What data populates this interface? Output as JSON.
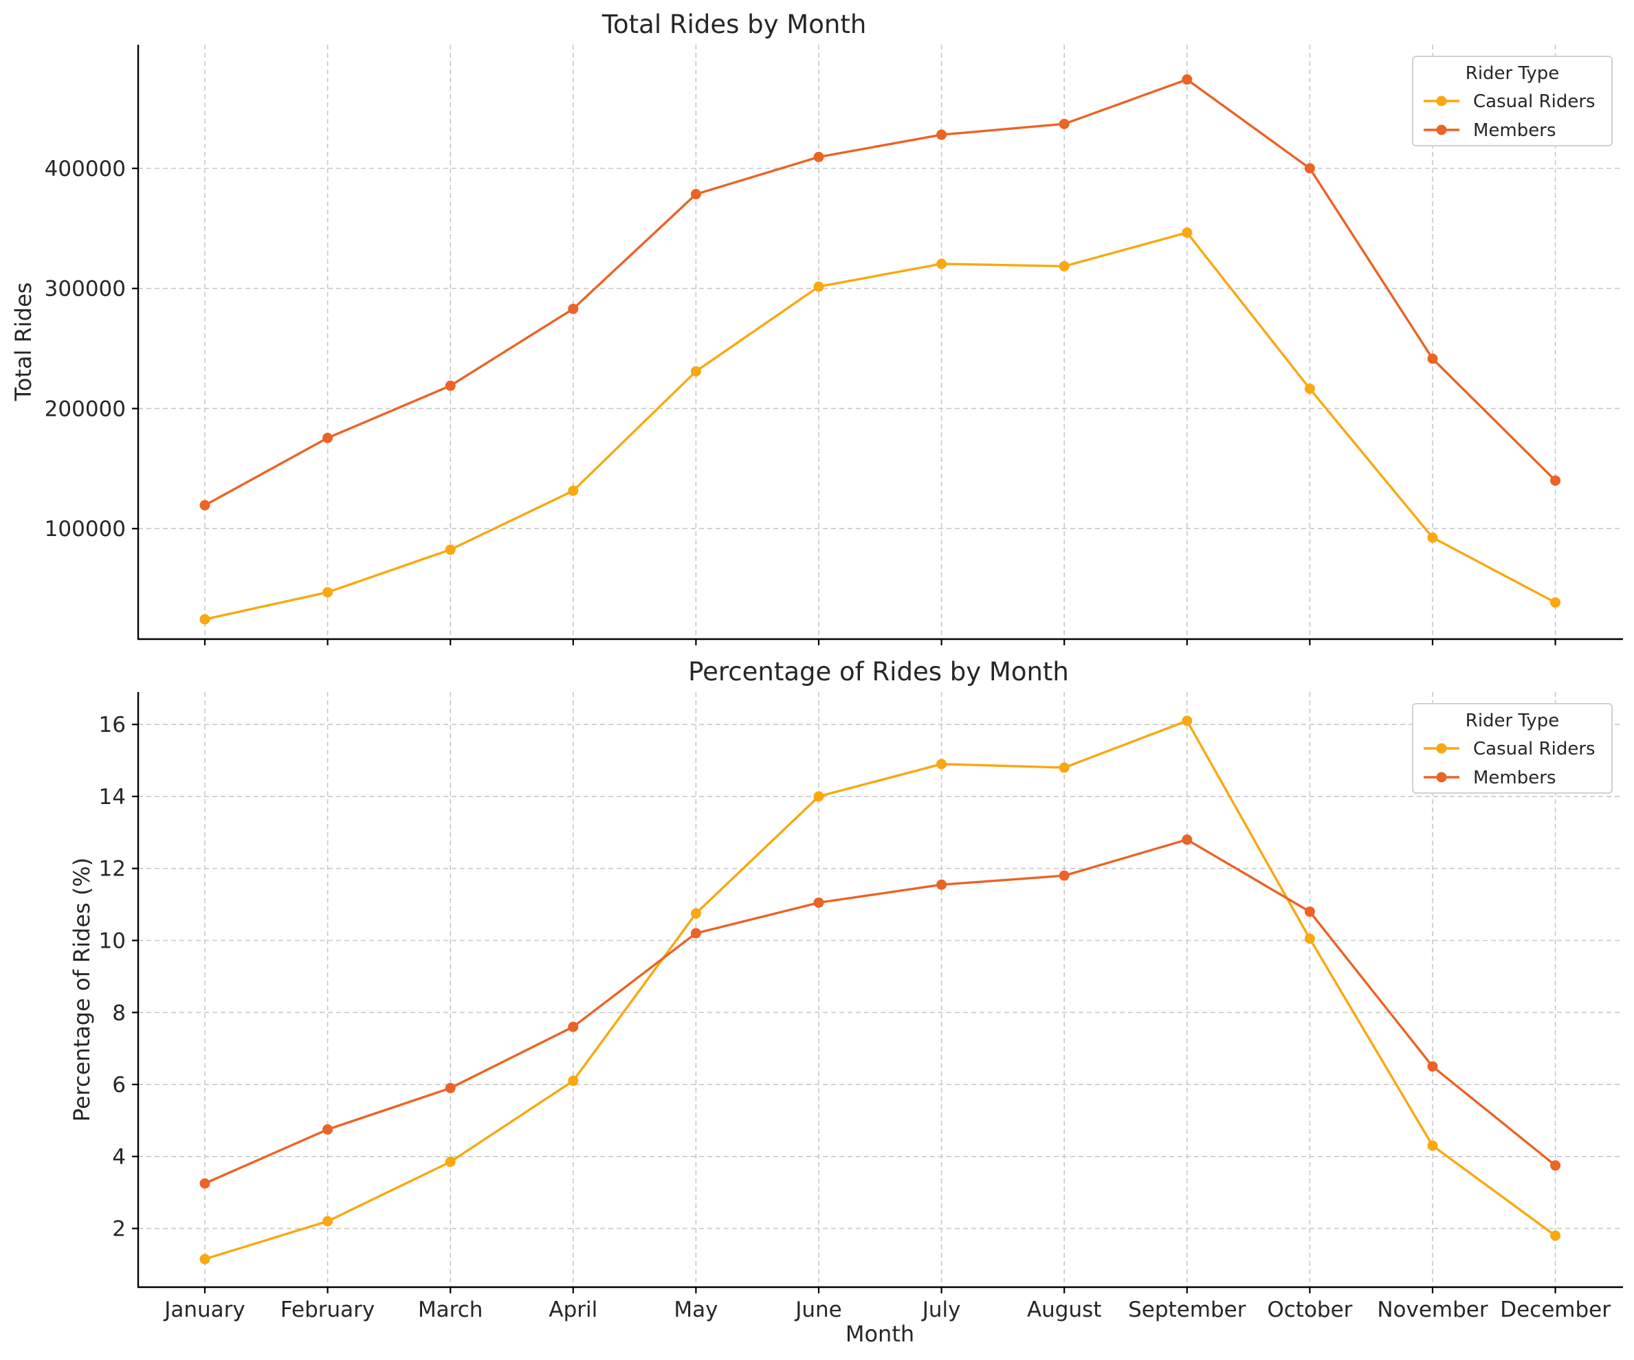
{
  "colors": {
    "casual": "#f9a80f",
    "members": "#eb6325"
  },
  "chart_data": [
    {
      "type": "line",
      "title": "Total Rides by Month",
      "xlabel": "",
      "ylabel": "Total Rides",
      "categories": [
        "January",
        "February",
        "March",
        "April",
        "May",
        "June",
        "July",
        "August",
        "September",
        "October",
        "November",
        "December"
      ],
      "ylim": [
        8000,
        503000
      ],
      "yticks": [
        "100000",
        "200000",
        "300000",
        "400000"
      ],
      "grid": true,
      "legend": {
        "title": "Rider Type",
        "placement": "top-right"
      },
      "series": [
        {
          "name": "Casual Riders",
          "color_key": "casual",
          "values": [
            24500,
            47000,
            82500,
            131500,
            231000,
            301500,
            320500,
            318500,
            346500,
            216500,
            92500,
            38500
          ]
        },
        {
          "name": "Members",
          "color_key": "members",
          "values": [
            119500,
            175500,
            219000,
            283000,
            378500,
            409500,
            428000,
            437000,
            474000,
            400000,
            241500,
            140000
          ]
        }
      ]
    },
    {
      "type": "line",
      "title": "Percentage of Rides by Month",
      "xlabel": "Month",
      "ylabel": "Percentage of Rides (%)",
      "categories": [
        "January",
        "February",
        "March",
        "April",
        "May",
        "June",
        "July",
        "August",
        "September",
        "October",
        "November",
        "December"
      ],
      "ylim": [
        0.37,
        16.9
      ],
      "yticks": [
        "2",
        "4",
        "6",
        "8",
        "10",
        "12",
        "14",
        "16"
      ],
      "grid": true,
      "legend": {
        "title": "Rider Type",
        "placement": "top-right"
      },
      "series": [
        {
          "name": "Casual Riders",
          "color_key": "casual",
          "values": [
            1.15,
            2.2,
            3.85,
            6.1,
            10.75,
            14.0,
            14.9,
            14.8,
            16.1,
            10.05,
            4.3,
            1.8
          ]
        },
        {
          "name": "Members",
          "color_key": "members",
          "values": [
            3.25,
            4.75,
            5.9,
            7.6,
            10.2,
            11.05,
            11.55,
            11.8,
            12.8,
            10.8,
            6.5,
            3.75
          ]
        }
      ]
    }
  ]
}
